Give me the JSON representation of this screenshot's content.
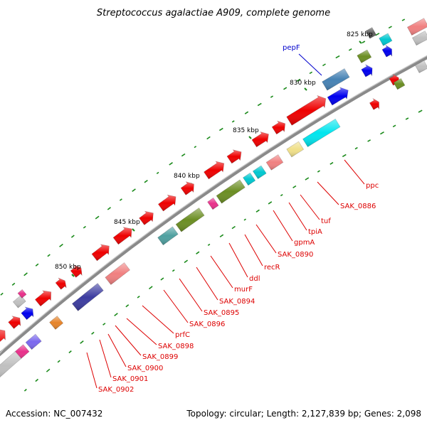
{
  "title": "Streptococcus agalactiae A909, complete genome",
  "accession": "Accession: NC_007432",
  "summary": "Topology: circular; Length: 2,127,839 bp; Genes: 2,098",
  "ticks": [
    "825 kbp",
    "830 kbp",
    "835 kbp",
    "840 kbp",
    "845 kbp",
    "850 kbp"
  ],
  "genes": [
    {
      "label": "pepF",
      "color": "#0000cc"
    },
    {
      "label": "ppc",
      "color": "#dd0000"
    },
    {
      "label": "SAK_0886",
      "color": "#dd0000"
    },
    {
      "label": "tuf",
      "color": "#dd0000"
    },
    {
      "label": "tpiA",
      "color": "#dd0000"
    },
    {
      "label": "gpmA",
      "color": "#dd0000"
    },
    {
      "label": "SAK_0890",
      "color": "#dd0000"
    },
    {
      "label": "recR",
      "color": "#dd0000"
    },
    {
      "label": "ddl",
      "color": "#dd0000"
    },
    {
      "label": "murF",
      "color": "#dd0000"
    },
    {
      "label": "SAK_0894",
      "color": "#dd0000"
    },
    {
      "label": "SAK_0895",
      "color": "#dd0000"
    },
    {
      "label": "SAK_0896",
      "color": "#dd0000"
    },
    {
      "label": "prfC",
      "color": "#dd0000"
    },
    {
      "label": "SAK_0898",
      "color": "#dd0000"
    },
    {
      "label": "SAK_0899",
      "color": "#dd0000"
    },
    {
      "label": "SAK_0900",
      "color": "#dd0000"
    },
    {
      "label": "SAK_0901",
      "color": "#dd0000"
    },
    {
      "label": "SAK_0902",
      "color": "#dd0000"
    }
  ],
  "colors": {
    "backbone": "#8a8a8a",
    "forward_cds": "#ee0000",
    "reverse_cds": "#0000ee",
    "gc_skew": "#1a8a1a"
  }
}
